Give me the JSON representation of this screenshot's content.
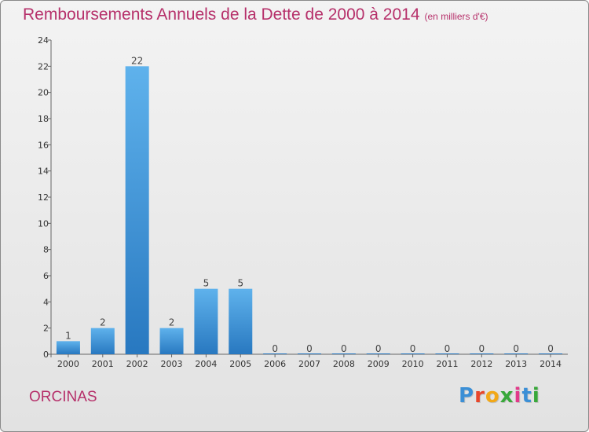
{
  "header": {
    "title": "Remboursements Annuels de la Dette de 2000 à 2014",
    "unit": "(en milliers d'€)"
  },
  "footer": {
    "commune": "ORCINAS",
    "logo": "Proxiti"
  },
  "colors": {
    "title": "#b6306a",
    "bar_top": "#5fb2ec",
    "bar_bottom": "#2878c0",
    "logo": [
      "#3b8fd6",
      "#e8462a",
      "#f2a818",
      "#38a83a",
      "#e23a8a",
      "#3b8fd6",
      "#38a83a"
    ]
  },
  "chart_data": {
    "type": "bar",
    "title": "Remboursements Annuels de la Dette de 2000 à 2014",
    "subtitle": "(en milliers d'€)",
    "categories": [
      "2000",
      "2001",
      "2002",
      "2003",
      "2004",
      "2005",
      "2006",
      "2007",
      "2008",
      "2009",
      "2010",
      "2011",
      "2012",
      "2013",
      "2014"
    ],
    "values": [
      1,
      2,
      22,
      2,
      5,
      5,
      0,
      0,
      0,
      0,
      0,
      0,
      0,
      0,
      0
    ],
    "data_labels": [
      "1",
      "2",
      "22",
      "2",
      "5",
      "5",
      "0",
      "0",
      "0",
      "0",
      "0",
      "0",
      "0",
      "0",
      "0"
    ],
    "ylim": [
      0,
      24
    ],
    "yticks": [
      0,
      2,
      4,
      6,
      8,
      10,
      12,
      14,
      16,
      18,
      20,
      22,
      24
    ],
    "grid": false,
    "legend": "none"
  }
}
